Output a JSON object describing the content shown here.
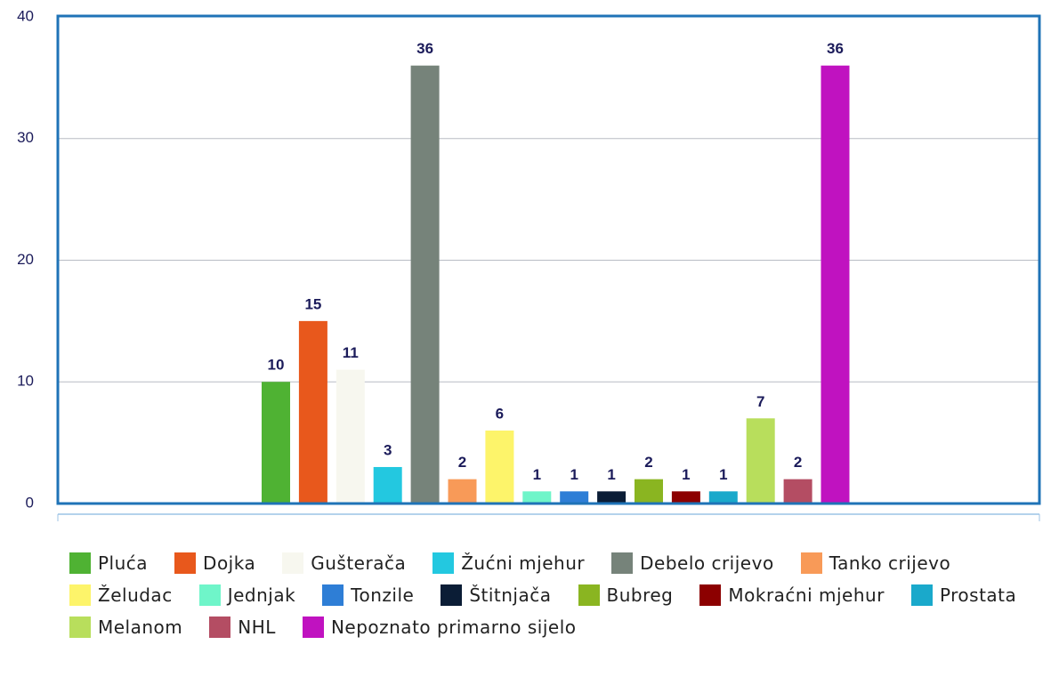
{
  "chart_data": {
    "type": "bar",
    "ylim": [
      0,
      40
    ],
    "yticks": [
      0,
      10,
      20,
      30,
      40
    ],
    "grid": true,
    "series": [
      {
        "name": "Pluća",
        "color": "#4fb233",
        "values": [
          10
        ]
      },
      {
        "name": "Dojka",
        "color": "#e8581c",
        "values": [
          15
        ]
      },
      {
        "name": "Gušterača",
        "color": "#f7f7ef",
        "values": [
          11
        ]
      },
      {
        "name": "Žućni mjehur",
        "color": "#23c8e0",
        "values": [
          3
        ]
      },
      {
        "name": "Debelo crijevo",
        "color": "#76837a",
        "values": [
          36
        ]
      },
      {
        "name": "Tanko crijevo",
        "color": "#f89a58",
        "values": [
          2
        ]
      },
      {
        "name": "Želudac",
        "color": "#fdf46a",
        "values": [
          6
        ]
      },
      {
        "name": "Jednjak",
        "color": "#6ff5c9",
        "values": [
          1
        ]
      },
      {
        "name": "Tonzile",
        "color": "#2e7ed6",
        "values": [
          1
        ]
      },
      {
        "name": "Štitnjača",
        "color": "#0b1d36",
        "values": [
          1
        ]
      },
      {
        "name": "Bubreg",
        "color": "#8ab521",
        "values": [
          2
        ]
      },
      {
        "name": "Mokraćni mjehur",
        "color": "#8c0000",
        "values": [
          1
        ]
      },
      {
        "name": "Prostata",
        "color": "#1aa9cb",
        "values": [
          1
        ]
      },
      {
        "name": "Melanom",
        "color": "#b8de5c",
        "values": [
          7
        ]
      },
      {
        "name": "NHL",
        "color": "#b44d63",
        "values": [
          2
        ]
      },
      {
        "name": "Nepoznato primarno sijelo",
        "color": "#c012c0",
        "values": [
          36
        ]
      }
    ]
  }
}
